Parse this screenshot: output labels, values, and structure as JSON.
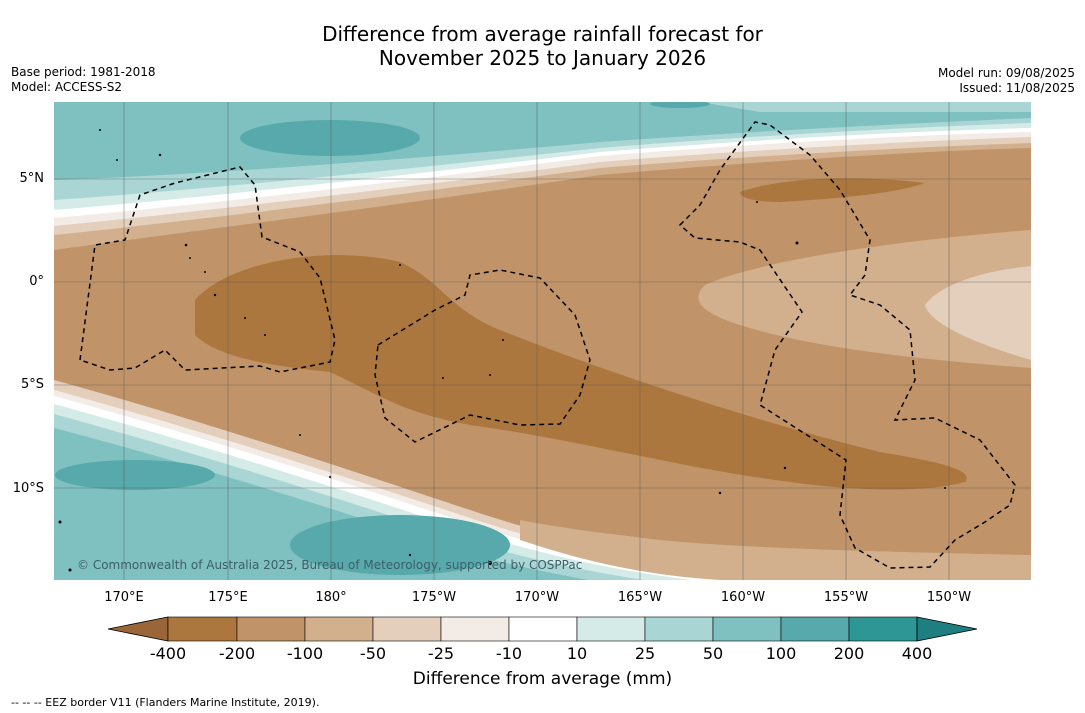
{
  "title": {
    "line1": "Difference from average rainfall forecast for",
    "line2": "November 2025 to January 2026"
  },
  "meta_left": {
    "base_period": "Base period: 1981-2018",
    "model": "Model: ACCESS-S2"
  },
  "meta_right": {
    "model_run": "Model run: 09/08/2025",
    "issued": "Issued: 11/08/2025"
  },
  "map": {
    "latitude_labels": [
      "5°N",
      "0°",
      "5°S",
      "10°S"
    ],
    "longitude_labels": [
      "170°E",
      "175°E",
      "180°",
      "175°W",
      "170°W",
      "165°W",
      "160°W",
      "155°W",
      "150°W"
    ],
    "copyright": "© Commonwealth of Australia 2025, Bureau of Meteorology, supported by COSPPac",
    "eez_border_style": "dashed",
    "grid": true
  },
  "colorbar": {
    "title": "Difference from average (mm)",
    "tick_labels": [
      "-400",
      "-200",
      "-100",
      "-50",
      "-25",
      "-10",
      "10",
      "25",
      "50",
      "100",
      "200",
      "400"
    ],
    "colors": [
      "#9a6639",
      "#ac773f",
      "#c09468",
      "#d2b08e",
      "#e3cfbc",
      "#f3ece6",
      "#ffffff",
      "#d4ebe8",
      "#a9d6d4",
      "#7fc0c0",
      "#57a9ab",
      "#2f9696",
      "#1f7f80"
    ],
    "extend": "both"
  },
  "footnote": "--  --  -- EEZ border V11 (Flanders Marine Institute, 2019)."
}
